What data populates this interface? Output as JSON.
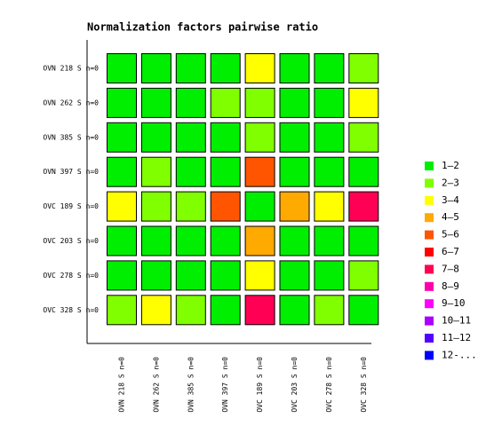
{
  "chart_data": {
    "type": "heatmap",
    "title": "Normalization factors pairwise ratio",
    "rows": [
      "OVN 218 S n=0",
      "OVN 262 S n=0",
      "OVN 385 S n=0",
      "OVN 397 S n=0",
      "OVC 189 S n=0",
      "OVC 203 S n=0",
      "OVC 278 S n=0",
      "OVC 328 S n=0"
    ],
    "columns": [
      "OVN 218 S n=0",
      "OVN 262 S n=0",
      "OVN 385 S n=0",
      "OVN 397 S n=0",
      "OVC 189 S n=0",
      "OVC 203 S n=0",
      "OVC 278 S n=0",
      "OVC 328 S n=0"
    ],
    "values": [
      [
        1.5,
        1.5,
        1.5,
        1.5,
        3.5,
        1.5,
        1.5,
        2.5
      ],
      [
        1.5,
        1.5,
        1.5,
        2.5,
        2.5,
        1.5,
        1.5,
        3.5
      ],
      [
        1.5,
        1.5,
        1.5,
        1.5,
        2.5,
        1.5,
        1.5,
        2.5
      ],
      [
        1.5,
        2.5,
        1.5,
        1.5,
        5.5,
        1.5,
        1.5,
        1.5
      ],
      [
        3.5,
        2.5,
        2.5,
        5.5,
        1.5,
        4.5,
        3.5,
        7.5
      ],
      [
        1.5,
        1.5,
        1.5,
        1.5,
        4.5,
        1.5,
        1.5,
        1.5
      ],
      [
        1.5,
        1.5,
        1.5,
        1.5,
        3.5,
        1.5,
        1.5,
        2.5
      ],
      [
        2.5,
        3.5,
        2.5,
        1.5,
        7.5,
        1.5,
        2.5,
        1.5
      ]
    ],
    "legend": {
      "bins": [
        1,
        2,
        3,
        4,
        5,
        6,
        7,
        8,
        9,
        10,
        11,
        12
      ],
      "labels": [
        "1–2",
        "2–3",
        "3–4",
        "4–5",
        "5–6",
        "6–7",
        "7–8",
        "8–9",
        "9–10",
        "10–11",
        "11–12",
        "12-..."
      ],
      "colors": [
        "#00ee00",
        "#80ff00",
        "#ffff00",
        "#ffaa00",
        "#ff5500",
        "#ff0000",
        "#ff0055",
        "#ff00aa",
        "#ff00ff",
        "#aa00ff",
        "#5500ff",
        "#0000ff"
      ]
    }
  }
}
